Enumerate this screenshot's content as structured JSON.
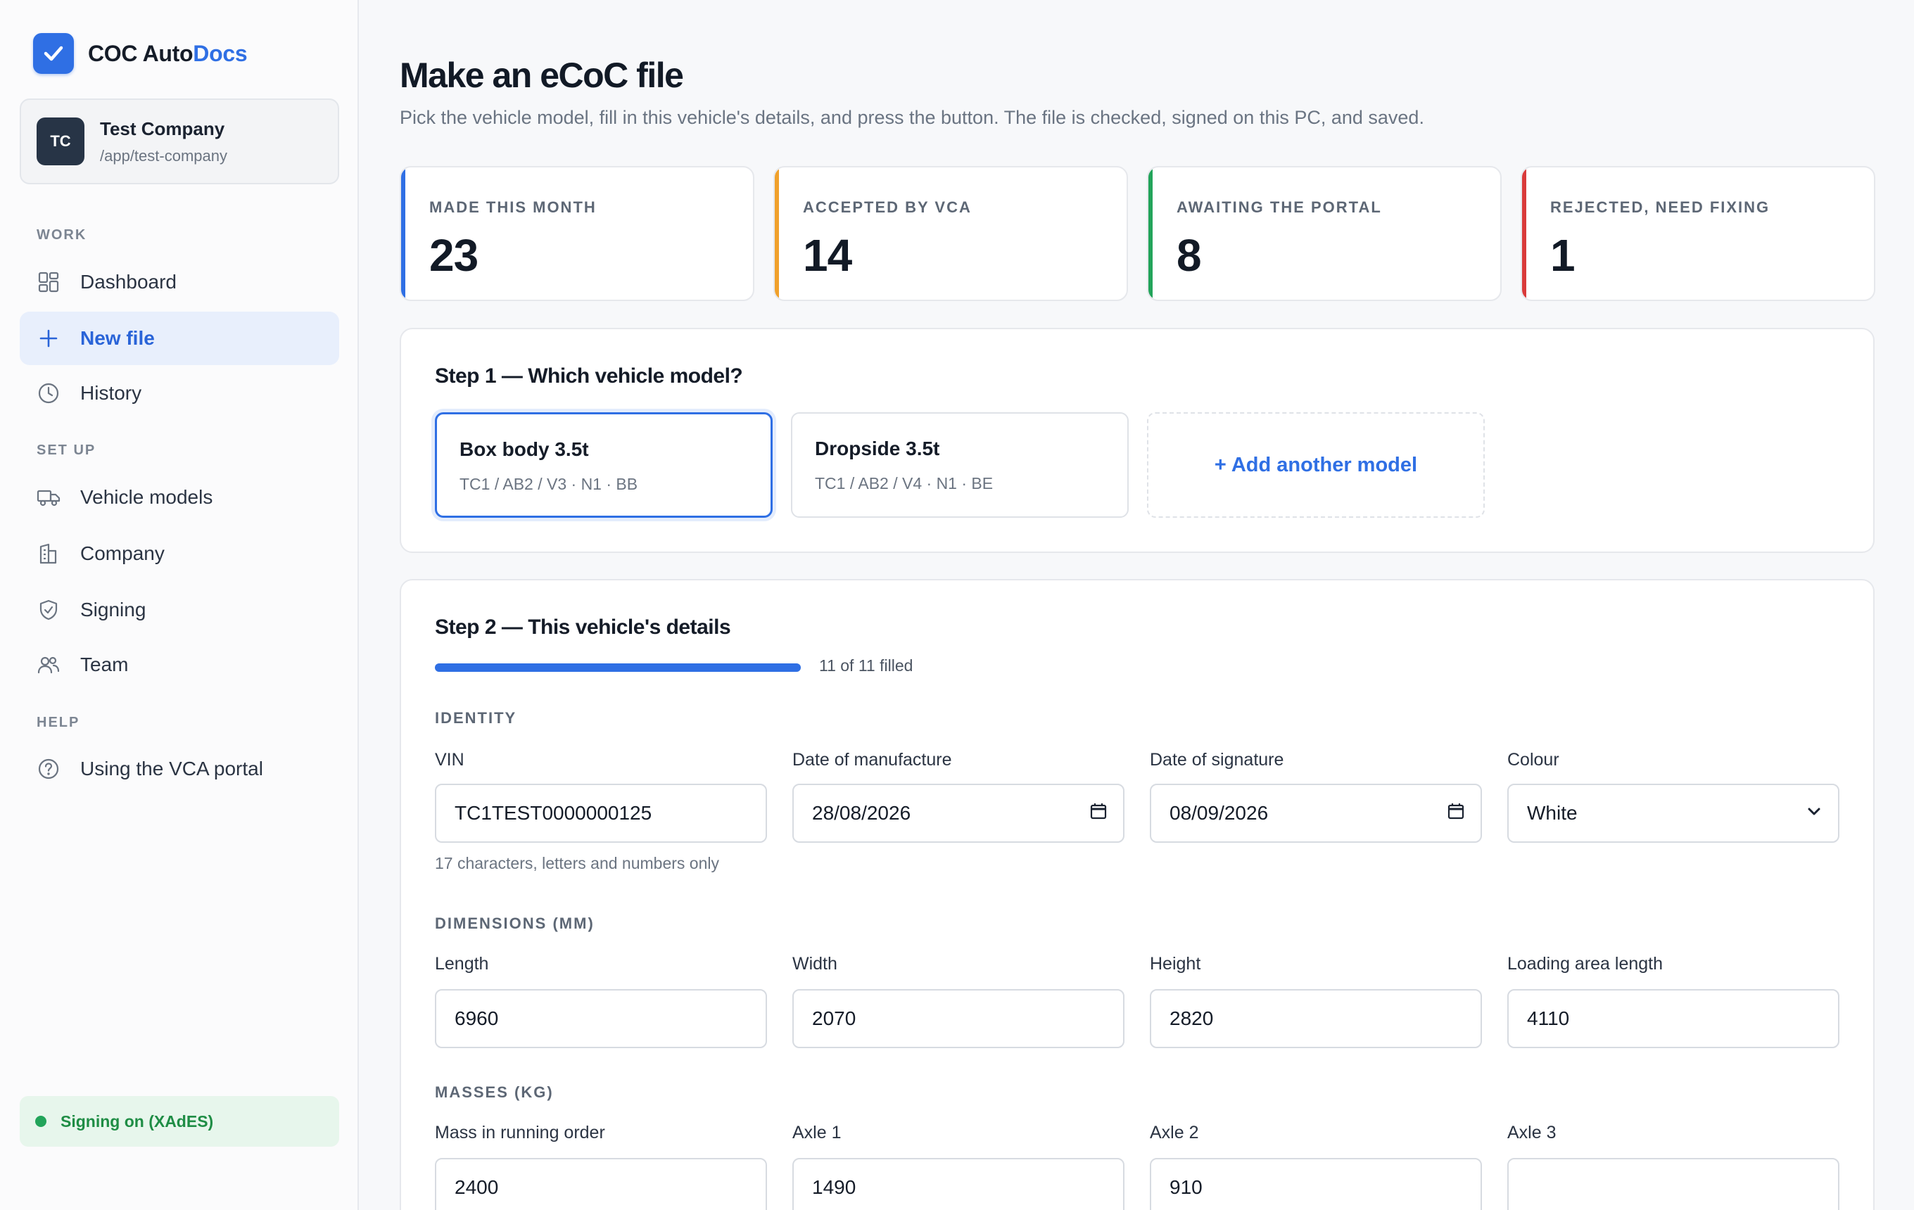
{
  "brand": {
    "name_part1": "COC Auto",
    "name_part2": "Docs"
  },
  "company": {
    "initials": "TC",
    "name": "Test Company",
    "path": "/app/test-company"
  },
  "nav": {
    "work_label": "WORK",
    "dashboard": "Dashboard",
    "new_file": "New file",
    "history": "History",
    "setup_label": "SET UP",
    "vehicle_models": "Vehicle models",
    "company": "Company",
    "signing": "Signing",
    "team": "Team",
    "help_label": "HELP",
    "vca_portal": "Using the VCA portal"
  },
  "signing_status": "Signing on (XAdES)",
  "page": {
    "title": "Make an eCoC file",
    "subtitle": "Pick the vehicle model, fill in this vehicle's details, and press the button. The file is checked, signed on this PC, and saved."
  },
  "stats": [
    {
      "label": "MADE THIS MONTH",
      "value": "23",
      "color": "#2f6fe4"
    },
    {
      "label": "ACCEPTED BY VCA",
      "value": "14",
      "color": "#f0a12b"
    },
    {
      "label": "AWAITING THE PORTAL",
      "value": "8",
      "color": "#22a45a"
    },
    {
      "label": "REJECTED, NEED FIXING",
      "value": "1",
      "color": "#d93a3a"
    }
  ],
  "step1": {
    "title": "Step 1 — Which vehicle model?",
    "models": [
      {
        "name": "Box body 3.5t",
        "code": "TC1 / AB2 / V3 · N1 · BB"
      },
      {
        "name": "Dropside 3.5t",
        "code": "TC1 / AB2 / V4 · N1 · BE"
      }
    ],
    "add_model": "+ Add another model"
  },
  "step2": {
    "title": "Step 2 — This vehicle's details",
    "progress_fraction": 1.0,
    "progress_text": "11 of 11 filled",
    "identity_label": "IDENTITY",
    "vin_label": "VIN",
    "vin_value": "TC1TEST0000000125",
    "vin_hint": "17 characters, letters and numbers only",
    "dom_label": "Date of manufacture",
    "dom_value": "28/08/2026",
    "dos_label": "Date of signature",
    "dos_value": "08/09/2026",
    "colour_label": "Colour",
    "colour_value": "White",
    "dimensions_label": "DIMENSIONS (MM)",
    "length_label": "Length",
    "length_value": "6960",
    "width_label": "Width",
    "width_value": "2070",
    "height_label": "Height",
    "height_value": "2820",
    "loading_label": "Loading area length",
    "loading_value": "4110",
    "masses_label": "MASSES (KG)",
    "mass_running_label": "Mass in running order",
    "mass_running_value": "2400",
    "axle1_label": "Axle 1",
    "axle1_value": "1490",
    "axle2_label": "Axle 2",
    "axle2_value": "910",
    "axle3_label": "Axle 3",
    "axle3_value": ""
  }
}
